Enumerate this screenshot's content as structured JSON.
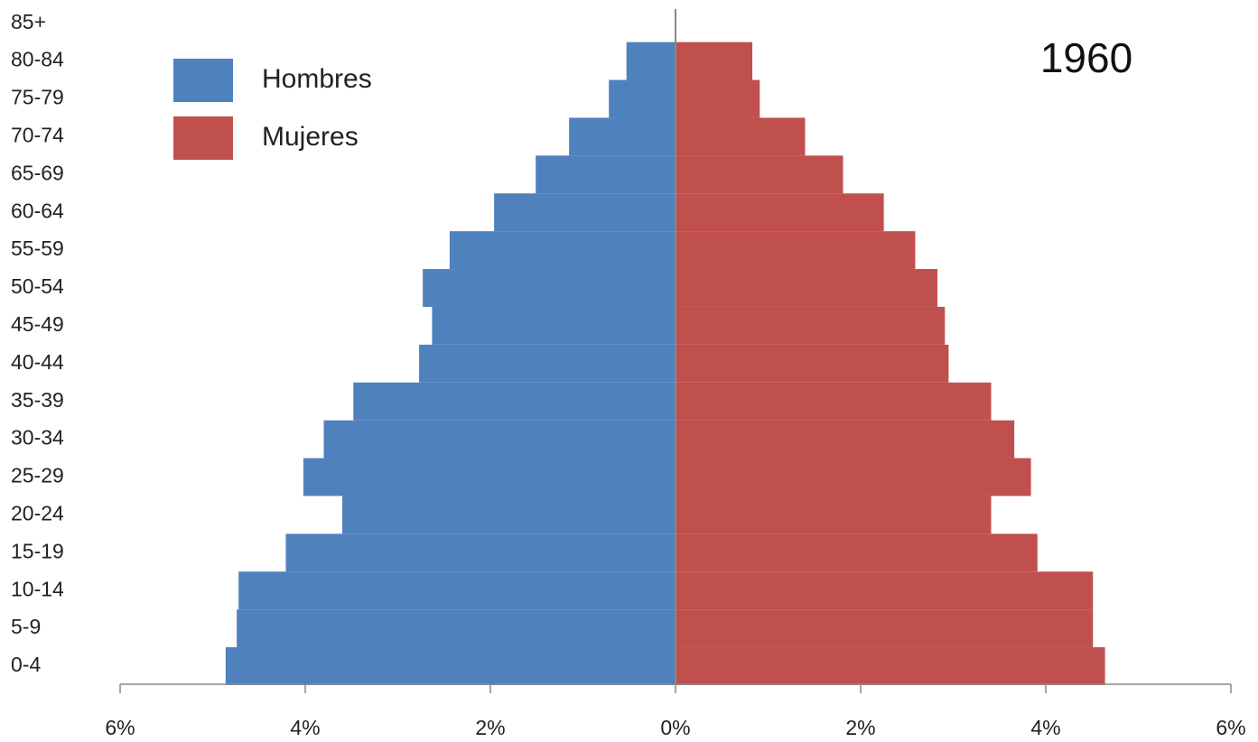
{
  "chart_data": {
    "type": "pyramid",
    "annotation": "1960",
    "categories": [
      "0-4",
      "5-9",
      "10-14",
      "15-19",
      "20-24",
      "25-29",
      "30-34",
      "35-39",
      "40-44",
      "45-49",
      "50-54",
      "55-59",
      "60-64",
      "65-69",
      "70-74",
      "75-79",
      "80-84",
      "85+"
    ],
    "series": [
      {
        "name": "Hombres",
        "color": "#4f81bd",
        "values": [
          -4.86,
          -4.74,
          -4.72,
          -4.21,
          -3.6,
          -4.02,
          -3.8,
          -3.48,
          -2.77,
          -2.63,
          -2.73,
          -2.44,
          -1.96,
          -1.51,
          -1.15,
          -0.72,
          -0.53,
          0
        ]
      },
      {
        "name": "Mujeres",
        "color": "#c0504d",
        "values": [
          4.64,
          4.51,
          4.51,
          3.91,
          3.41,
          3.84,
          3.66,
          3.41,
          2.95,
          2.91,
          2.83,
          2.59,
          2.25,
          1.81,
          1.4,
          0.91,
          0.83,
          0
        ]
      }
    ],
    "xlim": [
      -6,
      6
    ],
    "xticks": [
      {
        "value": -6,
        "label": "6%"
      },
      {
        "value": -4,
        "label": "4%"
      },
      {
        "value": -2,
        "label": "2%"
      },
      {
        "value": 0,
        "label": "0%"
      },
      {
        "value": 2,
        "label": "2%"
      },
      {
        "value": 4,
        "label": "4%"
      },
      {
        "value": 6,
        "label": "6%"
      }
    ],
    "legend": "upper left"
  }
}
